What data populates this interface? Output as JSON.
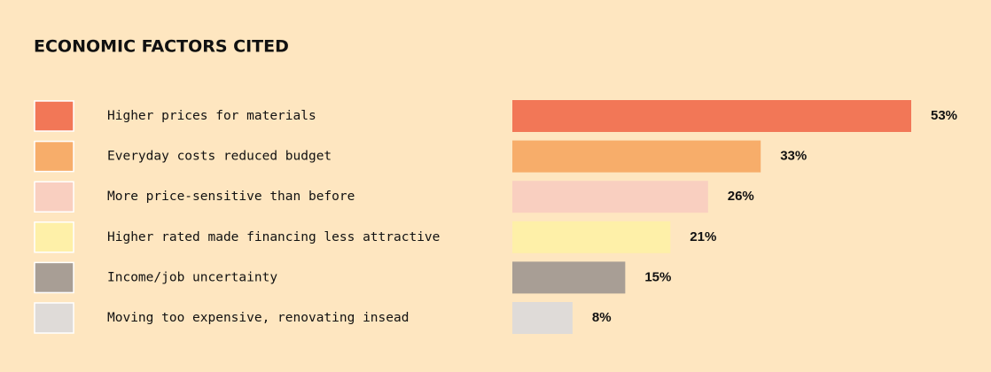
{
  "chart_data": {
    "type": "bar",
    "orientation": "horizontal",
    "title": "ECONOMIC FACTORS CITED",
    "categories": [
      "Higher prices for materials",
      "Everyday costs reduced budget",
      "More price-sensitive than before",
      "Higher rated made financing less attractive",
      "Income/job uncertainty",
      "Moving too expensive, renovating insead"
    ],
    "values": [
      53,
      33,
      26,
      21,
      15,
      8
    ],
    "value_labels": [
      "53%",
      "33%",
      "26%",
      "21%",
      "15%",
      "8%"
    ],
    "colors": [
      "#f27757",
      "#f7ad6a",
      "#f9cfc0",
      "#fef0a8",
      "#a89e95",
      "#dfdbd8"
    ]
  }
}
